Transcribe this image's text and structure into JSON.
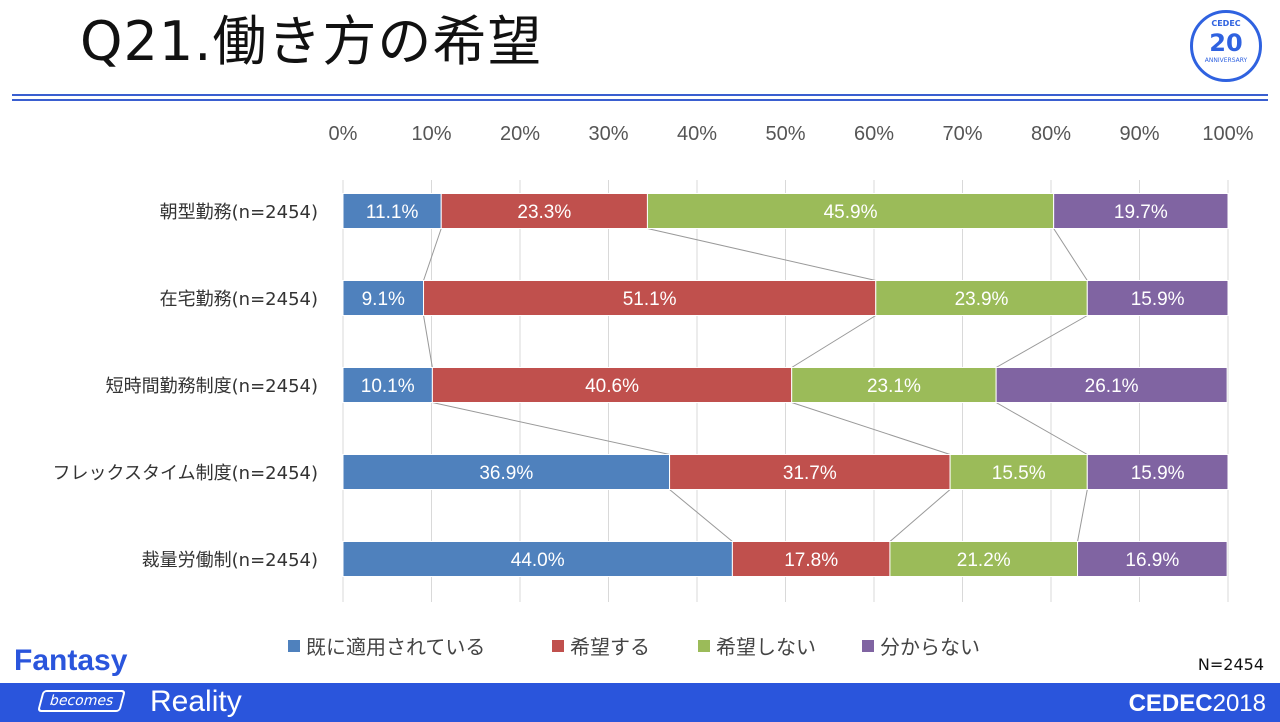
{
  "header": {
    "title": "Q21.働き方の希望",
    "logo_text": "CEDEC 20 ANNIVERSARY"
  },
  "footer": {
    "slogan_top": "Fantasy",
    "slogan_mid": "becomes",
    "slogan_bottom": "Reality",
    "brand": "CEDEC",
    "year": "2018"
  },
  "chart_data": {
    "type": "bar",
    "stacked": true,
    "orientation": "horizontal",
    "percent": true,
    "title": "Q21.働き方の希望",
    "categories": [
      "朝型勤務(n=2454)",
      "在宅勤務(n=2454)",
      "短時間勤務制度(n=2454)",
      "フレックスタイム制度(n=2454)",
      "裁量労働制(n=2454)"
    ],
    "series": [
      {
        "name": "既に適用されている",
        "color": "#4f81bd",
        "values": [
          11.1,
          9.1,
          10.1,
          36.9,
          44.0
        ]
      },
      {
        "name": "希望する",
        "color": "#c0504d",
        "values": [
          23.3,
          51.1,
          40.6,
          31.7,
          17.8
        ]
      },
      {
        "name": "希望しない",
        "color": "#9bbb59",
        "values": [
          45.9,
          23.9,
          23.1,
          15.5,
          21.2
        ]
      },
      {
        "name": "分からない",
        "color": "#8064a2",
        "values": [
          19.7,
          15.9,
          26.1,
          15.9,
          16.9
        ]
      }
    ],
    "xticks": [
      "0%",
      "10%",
      "20%",
      "30%",
      "40%",
      "50%",
      "60%",
      "70%",
      "80%",
      "90%",
      "100%"
    ],
    "xlim": [
      0,
      100
    ],
    "grid": true,
    "legend": "bottom",
    "series_lines": true,
    "note": "N=2454"
  }
}
